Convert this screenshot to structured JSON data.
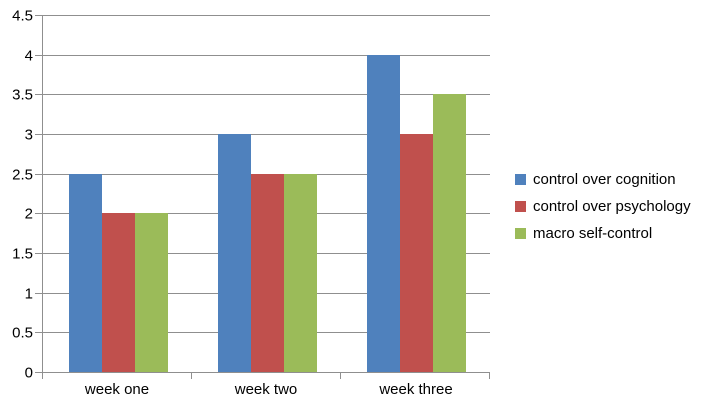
{
  "chart_data": {
    "type": "bar",
    "title": "",
    "categories": [
      "week one",
      "week two",
      "week three"
    ],
    "series": [
      {
        "name": "control over cognition",
        "color": "#4F81BD",
        "values": [
          2.5,
          3,
          4
        ]
      },
      {
        "name": "control over psychology",
        "color": "#C0504D",
        "values": [
          2,
          2.5,
          3
        ]
      },
      {
        "name": "macro self-control",
        "color": "#9BBB59",
        "values": [
          2,
          2.5,
          3.5
        ]
      }
    ],
    "xlabel": "",
    "ylabel": "",
    "ylim": [
      0,
      4.5
    ],
    "ytick_step": 0.5,
    "ytick_labels": [
      "0",
      "0.5",
      "1",
      "1.5",
      "2",
      "2.5",
      "3",
      "3.5",
      "4",
      "4.5"
    ],
    "grid": true,
    "legend_position": "right"
  },
  "colors": {
    "gridline": "#8F8F8F",
    "axis": "#8F8F8F",
    "label_text": "#000000",
    "background": "#FFFFFF"
  }
}
